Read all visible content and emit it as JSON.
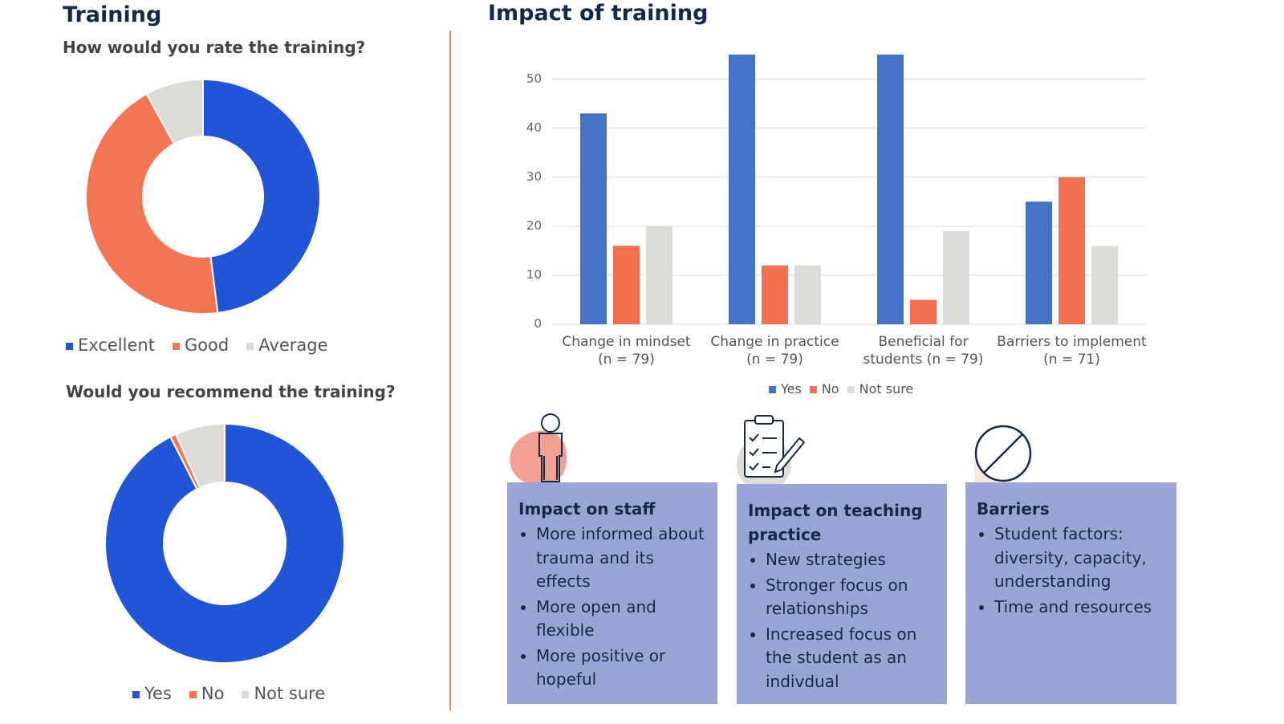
{
  "sections": [
    "Training",
    "Impact of training"
  ],
  "chart_data": [
    {
      "type": "pie",
      "title": "How would you rate the training?",
      "donut": true,
      "labels": [
        "Excellent",
        "Good",
        "Average"
      ],
      "values": [
        48,
        44,
        8
      ],
      "colors": [
        "#2255d6",
        "#f47553",
        "#dddbd7"
      ]
    },
    {
      "type": "pie",
      "title": "Would you recommend the training?",
      "donut": true,
      "labels": [
        "Yes",
        "No",
        "Not sure"
      ],
      "values": [
        92.5,
        0.8,
        6.7
      ],
      "colors": [
        "#2255d6",
        "#f47553",
        "#dddbd7"
      ]
    },
    {
      "type": "bar",
      "categories": [
        "Change in mindset\n(n = 79)",
        "Change in practice\n(n = 79)",
        "Beneficial for\nstudents (n = 79)",
        "Barriers to implement\n(n = 71)"
      ],
      "series": [
        {
          "name": "Yes",
          "color": "#4472c4",
          "values": [
            43,
            55,
            55,
            25
          ]
        },
        {
          "name": "No",
          "color": "#f07050",
          "values": [
            16,
            12,
            5,
            30
          ]
        },
        {
          "name": "Not sure",
          "color": "#dcdbd8",
          "values": [
            20,
            12,
            19,
            16
          ]
        }
      ],
      "ylim": [
        0,
        55
      ],
      "yticks": [
        0,
        10,
        20,
        30,
        40,
        50
      ],
      "grid": true,
      "legend": "bottom"
    }
  ],
  "panels": [
    {
      "title": "Impact on staff",
      "bullets": [
        "More informed about trauma and its effects",
        "More open and flexible",
        "More positive or hopeful"
      ]
    },
    {
      "title": "Impact on teaching practice",
      "bullets": [
        "New strategies",
        "Stronger focus on relationships",
        "Increased focus on the student as an indivdual"
      ]
    },
    {
      "title": "Barriers",
      "bullets": [
        "Student factors: diversity, capacity, understanding",
        "Time and resources"
      ]
    }
  ]
}
